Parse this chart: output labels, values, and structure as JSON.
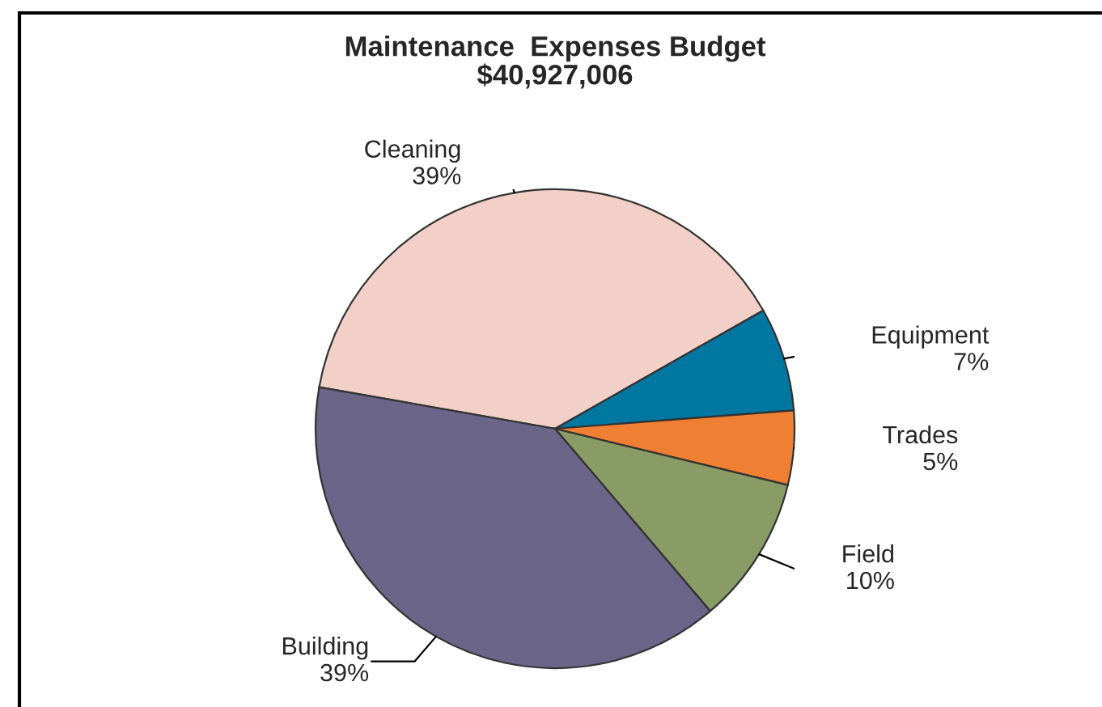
{
  "chart_data": {
    "type": "pie",
    "title": "Maintenance  Expenses Budget\n$40,927,006",
    "categories": [
      "Cleaning",
      "Equipment",
      "Trades",
      "Field",
      "Building"
    ],
    "values": [
      39,
      7,
      5,
      10,
      39
    ],
    "value_labels": [
      "39%",
      "7%",
      "5%",
      "10%",
      "39%"
    ],
    "colors": [
      "#f2d0c7",
      "#0077a0",
      "#ef7f33",
      "#8a9c66",
      "#6a6589"
    ],
    "legend": false
  }
}
